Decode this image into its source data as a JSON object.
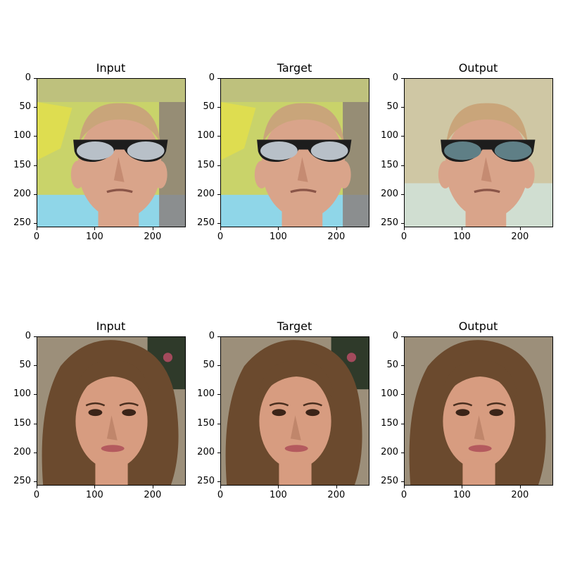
{
  "figure": {
    "rows": [
      {
        "panels": [
          {
            "title": "Input",
            "subject": "man-sunglasses-photo"
          },
          {
            "title": "Target",
            "subject": "man-sunglasses-photo"
          },
          {
            "title": "Output",
            "subject": "man-sunglasses-reconstruction"
          }
        ]
      },
      {
        "panels": [
          {
            "title": "Input",
            "subject": "woman-curly-hair-photo"
          },
          {
            "title": "Target",
            "subject": "woman-curly-hair-photo"
          },
          {
            "title": "Output",
            "subject": "woman-curly-hair-reconstruction"
          }
        ]
      }
    ],
    "y_ticks": [
      "0",
      "50",
      "100",
      "150",
      "200",
      "250"
    ],
    "x_ticks": [
      "0",
      "100",
      "200"
    ],
    "colors": {
      "row1_bg_left": "#c9d36a",
      "row1_bg_bottom": "#8fd6e8",
      "row1_skin": "#d9a48a",
      "row1_hair": "#c9a57a",
      "row1_glasses": "#1d1d1d",
      "row1_output_bg": "#cfc7a4",
      "row2_hair": "#6b4a2e",
      "row2_skin": "#d79c80",
      "row2_bg": "#9c8f7a"
    }
  }
}
